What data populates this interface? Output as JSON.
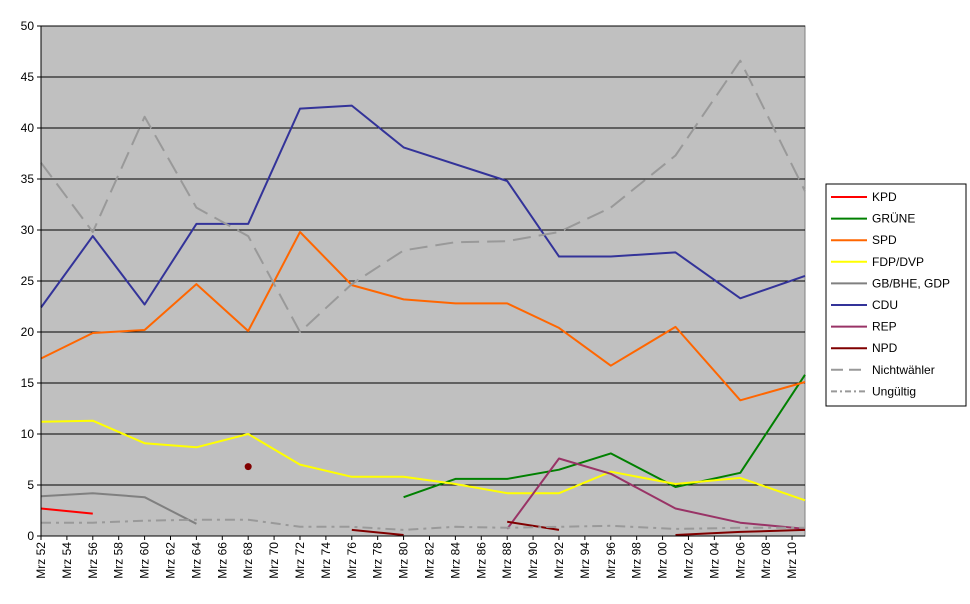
{
  "chart_data": {
    "type": "line",
    "title": "",
    "xlabel": "",
    "ylabel": "",
    "ylim": [
      0,
      50
    ],
    "yticks": [
      0,
      5,
      10,
      15,
      20,
      25,
      30,
      35,
      40,
      45,
      50
    ],
    "grid": true,
    "legend_position": "right",
    "plot_background": "#c0c0c0",
    "categories": [
      "Mrz 52",
      "Mrz 54",
      "Mrz 56",
      "Mrz 58",
      "Mrz 60",
      "Mrz 62",
      "Mrz 64",
      "Mrz 66",
      "Mrz 68",
      "Mrz 70",
      "Mrz 72",
      "Mrz 74",
      "Mrz 76",
      "Mrz 78",
      "Mrz 80",
      "Mrz 82",
      "Mrz 84",
      "Mrz 86",
      "Mrz 88",
      "Mrz 90",
      "Mrz 92",
      "Mrz 94",
      "Mrz 96",
      "Mrz 98",
      "Mrz 00",
      "Mrz 02",
      "Mrz 04",
      "Mrz 06",
      "Mrz 08",
      "Mrz 10"
    ],
    "series": [
      {
        "name": "KPD",
        "color": "#ff0000",
        "dash": "",
        "points": [
          [
            "Mrz 52",
            2.7
          ],
          [
            "Mrz 56",
            2.2
          ]
        ]
      },
      {
        "name": "GRÜNE",
        "color": "#008000",
        "dash": "",
        "points": [
          [
            "Mrz 80",
            3.8
          ],
          [
            "Mrz 84",
            5.6
          ],
          [
            "Mrz 88",
            5.6
          ],
          [
            "Mrz 92",
            6.5
          ],
          [
            "Mrz 96",
            8.1
          ],
          [
            "Mrz 01",
            4.8
          ],
          [
            "Mrz 06",
            6.2
          ],
          [
            "Mrz 11",
            15.8
          ]
        ]
      },
      {
        "name": "SPD",
        "color": "#ff6600",
        "dash": "",
        "points": [
          [
            "Mrz 52",
            17.4
          ],
          [
            "Mrz 56",
            19.9
          ],
          [
            "Mrz 60",
            20.2
          ],
          [
            "Mrz 64",
            24.7
          ],
          [
            "Mrz 68",
            20.1
          ],
          [
            "Mrz 72",
            29.8
          ],
          [
            "Mrz 76",
            24.6
          ],
          [
            "Mrz 80",
            23.2
          ],
          [
            "Mrz 84",
            22.8
          ],
          [
            "Mrz 88",
            22.8
          ],
          [
            "Mrz 92",
            20.4
          ],
          [
            "Mrz 96",
            16.7
          ],
          [
            "Mrz 01",
            20.5
          ],
          [
            "Mrz 06",
            13.3
          ],
          [
            "Mrz 11",
            15.1
          ]
        ]
      },
      {
        "name": "FDP/DVP",
        "color": "#ffff00",
        "dash": "",
        "points": [
          [
            "Mrz 52",
            11.2
          ],
          [
            "Mrz 56",
            11.3
          ],
          [
            "Mrz 60",
            9.1
          ],
          [
            "Mrz 64",
            8.7
          ],
          [
            "Mrz 68",
            10.0
          ],
          [
            "Mrz 72",
            7.0
          ],
          [
            "Mrz 76",
            5.8
          ],
          [
            "Mrz 80",
            5.8
          ],
          [
            "Mrz 84",
            5.1
          ],
          [
            "Mrz 88",
            4.2
          ],
          [
            "Mrz 92",
            4.2
          ],
          [
            "Mrz 96",
            6.3
          ],
          [
            "Mrz 01",
            5.1
          ],
          [
            "Mrz 06",
            5.7
          ],
          [
            "Mrz 11",
            3.5
          ]
        ]
      },
      {
        "name": "GB/BHE, GDP",
        "color": "#808080",
        "dash": "",
        "points": [
          [
            "Mrz 52",
            3.9
          ],
          [
            "Mrz 56",
            4.2
          ],
          [
            "Mrz 60",
            3.8
          ],
          [
            "Mrz 64",
            1.2
          ]
        ]
      },
      {
        "name": "CDU",
        "color": "#333399",
        "dash": "",
        "points": [
          [
            "Mrz 52",
            22.4
          ],
          [
            "Mrz 56",
            29.4
          ],
          [
            "Mrz 60",
            22.7
          ],
          [
            "Mrz 64",
            30.6
          ],
          [
            "Mrz 68",
            30.6
          ],
          [
            "Mrz 72",
            41.9
          ],
          [
            "Mrz 76",
            42.2
          ],
          [
            "Mrz 80",
            38.1
          ],
          [
            "Mrz 88",
            34.8
          ],
          [
            "Mrz 92",
            27.4
          ],
          [
            "Mrz 96",
            27.4
          ],
          [
            "Mrz 01",
            27.8
          ],
          [
            "Mrz 06",
            23.3
          ],
          [
            "Mrz 11",
            25.5
          ]
        ]
      },
      {
        "name": "REP",
        "color": "#993366",
        "dash": "",
        "points": [
          [
            "Mrz 88",
            0.7
          ],
          [
            "Mrz 92",
            7.6
          ],
          [
            "Mrz 96",
            6.1
          ],
          [
            "Mrz 01",
            2.7
          ],
          [
            "Mrz 06",
            1.3
          ],
          [
            "Mrz 11",
            0.7
          ]
        ]
      },
      {
        "name": "NPD",
        "color": "#800000",
        "dash": "",
        "points": [
          [
            "Mrz 76",
            0.6
          ],
          [
            "Mrz 80",
            0.1
          ]
        ],
        "extra_segments": [
          [
            [
              "Mrz 88",
              1.4
            ],
            [
              "Mrz 92",
              0.6
            ]
          ],
          [
            [
              "Mrz 01",
              0.1
            ],
            [
              "Mrz 06",
              0.4
            ],
            [
              "Mrz 11",
              0.6
            ]
          ]
        ],
        "markers": [
          [
            "Mrz 68",
            6.8
          ]
        ]
      },
      {
        "name": "Nichtwähler",
        "color": "#999999",
        "dash": "18 8",
        "points": [
          [
            "Mrz 52",
            36.6
          ],
          [
            "Mrz 56",
            29.8
          ],
          [
            "Mrz 60",
            41.1
          ],
          [
            "Mrz 64",
            32.2
          ],
          [
            "Mrz 68",
            29.4
          ],
          [
            "Mrz 72",
            20.0
          ],
          [
            "Mrz 76",
            24.7
          ],
          [
            "Mrz 80",
            28.0
          ],
          [
            "Mrz 84",
            28.8
          ],
          [
            "Mrz 88",
            28.9
          ],
          [
            "Mrz 92",
            29.8
          ],
          [
            "Mrz 96",
            32.2
          ],
          [
            "Mrz 01",
            37.3
          ],
          [
            "Mrz 06",
            46.6
          ],
          [
            "Mrz 11",
            33.8
          ]
        ]
      },
      {
        "name": "Ungültig",
        "color": "#999999",
        "dash": "10 5 3 5",
        "points": [
          [
            "Mrz 52",
            1.3
          ],
          [
            "Mrz 56",
            1.3
          ],
          [
            "Mrz 60",
            1.5
          ],
          [
            "Mrz 64",
            1.6
          ],
          [
            "Mrz 68",
            1.6
          ],
          [
            "Mrz 72",
            0.9
          ],
          [
            "Mrz 76",
            0.9
          ],
          [
            "Mrz 80",
            0.6
          ],
          [
            "Mrz 84",
            0.9
          ],
          [
            "Mrz 88",
            0.8
          ],
          [
            "Mrz 92",
            0.9
          ],
          [
            "Mrz 96",
            1.0
          ],
          [
            "Mrz 01",
            0.7
          ],
          [
            "Mrz 06",
            0.8
          ],
          [
            "Mrz 11",
            0.8
          ]
        ]
      }
    ]
  }
}
